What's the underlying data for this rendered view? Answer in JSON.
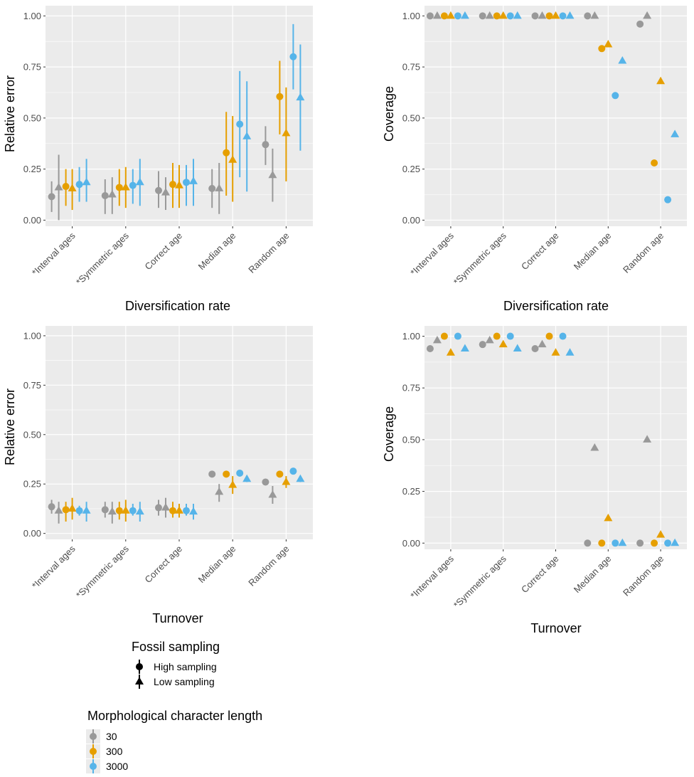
{
  "colors": {
    "panel_bg": "#EBEBEB",
    "grid": "#FFFFFF",
    "tick_text": "#4D4D4D",
    "n30": "#999999",
    "n300": "#E69F00",
    "n3000": "#56B4E9"
  },
  "categories": [
    "*Interval ages",
    "*Symmetric ages",
    "Correct age",
    "Median age",
    "Random age"
  ],
  "series_keys": [
    {
      "length": "30",
      "sampling": "high"
    },
    {
      "length": "30",
      "sampling": "low"
    },
    {
      "length": "300",
      "sampling": "high"
    },
    {
      "length": "300",
      "sampling": "low"
    },
    {
      "length": "3000",
      "sampling": "high"
    },
    {
      "length": "3000",
      "sampling": "low"
    }
  ],
  "chart_data": [
    {
      "type": "scatter",
      "panel": "top-left",
      "xlabel": "Diversification rate",
      "ylabel": "Relative error",
      "ylim": [
        -0.03,
        1.05
      ],
      "yticks": [
        "0.00",
        "0.25",
        "0.50",
        "0.75",
        "1.00"
      ],
      "values": [
        [
          0.115,
          0.16,
          0.165,
          0.155,
          0.175,
          0.185
        ],
        [
          0.12,
          0.125,
          0.16,
          0.16,
          0.17,
          0.185
        ],
        [
          0.145,
          0.135,
          0.175,
          0.17,
          0.185,
          0.19
        ],
        [
          0.155,
          0.155,
          0.33,
          0.295,
          0.47,
          0.41
        ],
        [
          0.37,
          0.22,
          0.605,
          0.425,
          0.8,
          0.6
        ]
      ],
      "lower": [
        [
          0.04,
          0.0,
          0.07,
          0.05,
          0.09,
          0.09
        ],
        [
          0.03,
          0.03,
          0.07,
          0.06,
          0.08,
          0.07
        ],
        [
          0.06,
          0.05,
          0.06,
          0.06,
          0.07,
          0.07
        ],
        [
          0.06,
          0.03,
          0.12,
          0.09,
          0.21,
          0.14
        ],
        [
          0.27,
          0.09,
          0.42,
          0.19,
          0.64,
          0.34
        ]
      ],
      "upper": [
        [
          0.19,
          0.32,
          0.25,
          0.25,
          0.26,
          0.3
        ],
        [
          0.2,
          0.21,
          0.25,
          0.26,
          0.25,
          0.3
        ],
        [
          0.24,
          0.21,
          0.28,
          0.27,
          0.27,
          0.3
        ],
        [
          0.25,
          0.28,
          0.53,
          0.51,
          0.73,
          0.68
        ],
        [
          0.46,
          0.35,
          0.78,
          0.65,
          0.96,
          0.86
        ]
      ]
    },
    {
      "type": "scatter",
      "panel": "top-right",
      "xlabel": "Diversification rate",
      "ylabel": "Coverage",
      "ylim": [
        -0.03,
        1.05
      ],
      "yticks": [
        "0.00",
        "0.25",
        "0.50",
        "0.75",
        "1.00"
      ],
      "values": [
        [
          1.0,
          1.0,
          1.0,
          1.0,
          1.0,
          1.0
        ],
        [
          1.0,
          1.0,
          1.0,
          1.0,
          1.0,
          1.0
        ],
        [
          1.0,
          1.0,
          1.0,
          1.0,
          1.0,
          1.0
        ],
        [
          1.0,
          1.0,
          0.84,
          0.86,
          0.61,
          0.78
        ],
        [
          0.96,
          1.0,
          0.28,
          0.68,
          0.1,
          0.42
        ]
      ]
    },
    {
      "type": "scatter",
      "panel": "bottom-left",
      "xlabel": "Turnover",
      "ylabel": "Relative error",
      "ylim": [
        -0.03,
        1.05
      ],
      "yticks": [
        "0.00",
        "0.25",
        "0.50",
        "0.75",
        "1.00"
      ],
      "values": [
        [
          0.135,
          0.115,
          0.12,
          0.125,
          0.115,
          0.115
        ],
        [
          0.12,
          0.11,
          0.115,
          0.115,
          0.115,
          0.11
        ],
        [
          0.13,
          0.13,
          0.115,
          0.115,
          0.115,
          0.11
        ],
        [
          0.3,
          0.21,
          0.3,
          0.245,
          0.305,
          0.275
        ],
        [
          0.26,
          0.195,
          0.3,
          0.26,
          0.315,
          0.275
        ]
      ],
      "lower": [
        [
          0.1,
          0.05,
          0.06,
          0.07,
          0.09,
          0.06
        ],
        [
          0.08,
          0.05,
          0.07,
          0.06,
          0.09,
          0.06
        ],
        [
          0.09,
          0.08,
          0.08,
          0.08,
          0.09,
          0.07
        ],
        [
          0.3,
          0.16,
          0.3,
          0.2,
          0.305,
          0.26
        ],
        [
          0.26,
          0.15,
          0.3,
          0.23,
          0.315,
          0.26
        ]
      ],
      "upper": [
        [
          0.17,
          0.16,
          0.16,
          0.18,
          0.14,
          0.16
        ],
        [
          0.16,
          0.16,
          0.16,
          0.17,
          0.15,
          0.16
        ],
        [
          0.17,
          0.18,
          0.16,
          0.15,
          0.15,
          0.15
        ],
        [
          0.3,
          0.25,
          0.3,
          0.29,
          0.305,
          0.29
        ],
        [
          0.26,
          0.24,
          0.3,
          0.29,
          0.315,
          0.29
        ]
      ]
    },
    {
      "type": "scatter",
      "panel": "bottom-right",
      "xlabel": "Turnover",
      "ylabel": "Coverage",
      "ylim": [
        -0.03,
        1.05
      ],
      "yticks": [
        "0.00",
        "0.25",
        "0.50",
        "0.75",
        "1.00"
      ],
      "values": [
        [
          0.94,
          0.98,
          1.0,
          0.92,
          1.0,
          0.94
        ],
        [
          0.96,
          0.98,
          1.0,
          0.96,
          1.0,
          0.94
        ],
        [
          0.94,
          0.96,
          1.0,
          0.92,
          1.0,
          0.92
        ],
        [
          0.0,
          0.46,
          0.0,
          0.12,
          0.0,
          0.0
        ],
        [
          0.0,
          0.5,
          0.0,
          0.04,
          0.0,
          0.0
        ]
      ]
    }
  ],
  "legend": {
    "sampling_title": "Fossil sampling",
    "sampling_items": [
      {
        "label": "High sampling",
        "shape": "circle"
      },
      {
        "label": "Low sampling",
        "shape": "triangle"
      }
    ],
    "length_title": "Morphological character length",
    "length_items": [
      {
        "label": "30",
        "color": "#999999"
      },
      {
        "label": "300",
        "color": "#E69F00"
      },
      {
        "label": "3000",
        "color": "#56B4E9"
      }
    ]
  }
}
